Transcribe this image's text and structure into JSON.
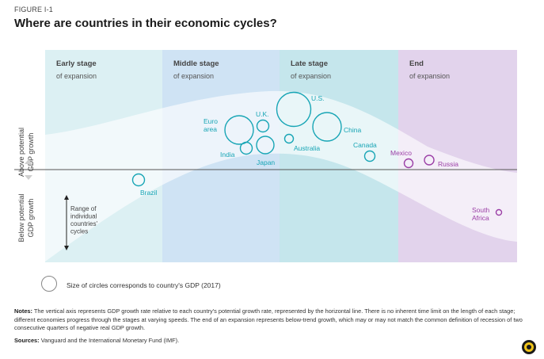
{
  "figure_label": "FIGURE I-1",
  "title": "Where are countries in their economic cycles?",
  "chart_data": {
    "type": "scatter",
    "stages": [
      {
        "name": "Early stage",
        "sub": "of expansion",
        "color": "#dcf0f3"
      },
      {
        "name": "Middle stage",
        "sub": "of expansion",
        "color": "#cfe3f4"
      },
      {
        "name": "Late stage",
        "sub": "of expansion",
        "color": "#c5e6ec"
      },
      {
        "name": "End",
        "sub": "of expansion",
        "color": "#e2d3ec"
      }
    ],
    "y_axis": {
      "upper_label": [
        "Above potential",
        "GDP growth"
      ],
      "lower_label": [
        "Below potential",
        "GDP growth"
      ]
    },
    "range_note": [
      "Range of",
      "individual",
      "countries'",
      "cycles"
    ],
    "countries": [
      {
        "name": "Brazil",
        "stage": "Early",
        "gdp_size": "small",
        "color": "#17a5b5"
      },
      {
        "name": "India",
        "stage": "Middle",
        "gdp_size": "small",
        "color": "#17a5b5"
      },
      {
        "name": "Euro area",
        "stage": "Middle",
        "gdp_size": "large",
        "color": "#17a5b5"
      },
      {
        "name": "U.K.",
        "stage": "Middle",
        "gdp_size": "small",
        "color": "#17a5b5"
      },
      {
        "name": "Japan",
        "stage": "Middle",
        "gdp_size": "medium",
        "color": "#17a5b5"
      },
      {
        "name": "U.S.",
        "stage": "Late",
        "gdp_size": "largest",
        "color": "#17a5b5"
      },
      {
        "name": "Australia",
        "stage": "Late",
        "gdp_size": "small",
        "color": "#17a5b5"
      },
      {
        "name": "China",
        "stage": "Late",
        "gdp_size": "large",
        "color": "#17a5b5"
      },
      {
        "name": "Canada",
        "stage": "Late",
        "gdp_size": "small",
        "color": "#17a5b5"
      },
      {
        "name": "Mexico",
        "stage": "End",
        "gdp_size": "small",
        "color": "#9b3fa6"
      },
      {
        "name": "Russia",
        "stage": "End",
        "gdp_size": "small",
        "color": "#9b3fa6"
      },
      {
        "name": "South Africa",
        "stage": "End",
        "gdp_size": "smallest",
        "color": "#9b3fa6"
      }
    ],
    "colors": {
      "band": "#ffffff",
      "axis_line": "#555555",
      "advanced": "#17a5b5",
      "end": "#9b3fa6"
    }
  },
  "legend_text": "Size of circles corresponds to country's GDP (2017)",
  "notes_label": "Notes:",
  "notes_text": "The vertical axis represents GDP growth rate relative to each country's potential growth rate, represented by the horizontal line. There is no inherent time limit on the length of each stage; different economies progress through the stages at varying speeds. The end of an expansion represents below-trend growth, which may or may not match the common definition of recession of two consecutive quarters of negative real GDP growth.",
  "sources_label": "Sources:",
  "sources_text": "Vanguard and the International Monetary Fund (IMF)."
}
